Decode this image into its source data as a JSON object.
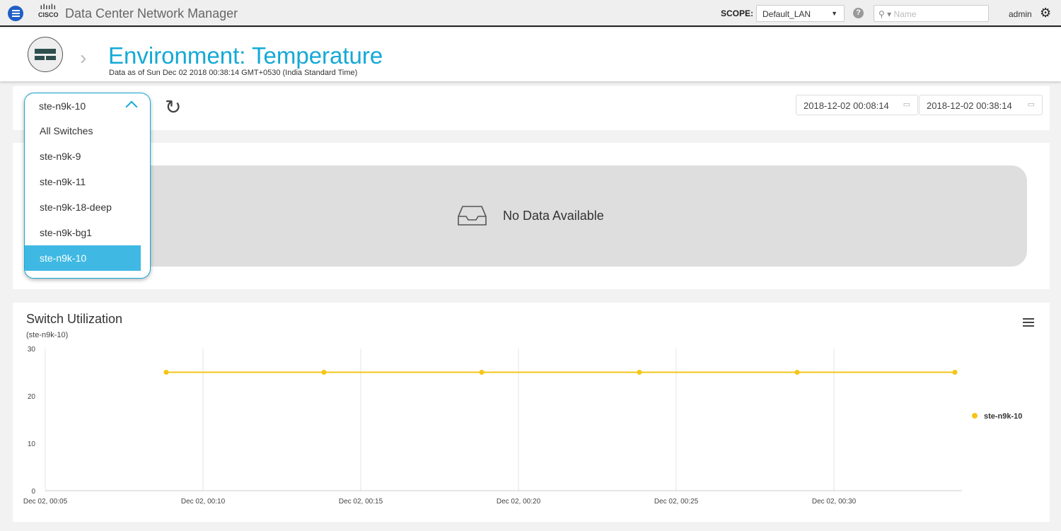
{
  "topbar": {
    "app_title": "Data Center Network Manager",
    "logo_text": "CISCO",
    "scope_label": "SCOPE:",
    "scope_value": "Default_LAN",
    "search_placeholder": "Name",
    "user": "admin"
  },
  "header": {
    "title": "Environment: Temperature",
    "subtitle": "Data as of Sun Dec 02 2018 00:38:14 GMT+0530 (India Standard Time)"
  },
  "filter": {
    "selected": "ste-n9k-10",
    "options": [
      "All Switches",
      "ste-n9k-9",
      "ste-n9k-11",
      "ste-n9k-18-deep",
      "ste-n9k-bg1",
      "ste-n9k-10"
    ],
    "start_date": "2018-12-02 00:08:14",
    "end_date": "2018-12-02 00:38:14"
  },
  "empty": {
    "message": "No Data Available"
  },
  "colors": {
    "accent": "#14a9d6",
    "series": "#f5c518"
  },
  "chart_data": {
    "type": "line",
    "title": "Switch Utilization",
    "subtitle": "(ste-n9k-10)",
    "xlabel": "",
    "ylabel": "",
    "ylim": [
      0,
      30
    ],
    "yticks": [
      "0",
      "10",
      "20",
      "30"
    ],
    "xticks": [
      "Dec 02, 00:05",
      "Dec 02, 00:10",
      "Dec 02, 00:15",
      "Dec 02, 00:20",
      "Dec 02, 00:25",
      "Dec 02, 00:30"
    ],
    "grid": true,
    "legend": "right",
    "series": [
      {
        "name": "ste-n9k-10",
        "x": [
          "00:08:50",
          "00:13:50",
          "00:18:50",
          "00:23:50",
          "00:28:50",
          "00:33:50"
        ],
        "values": [
          25,
          25,
          25,
          25,
          25,
          25
        ]
      }
    ]
  }
}
